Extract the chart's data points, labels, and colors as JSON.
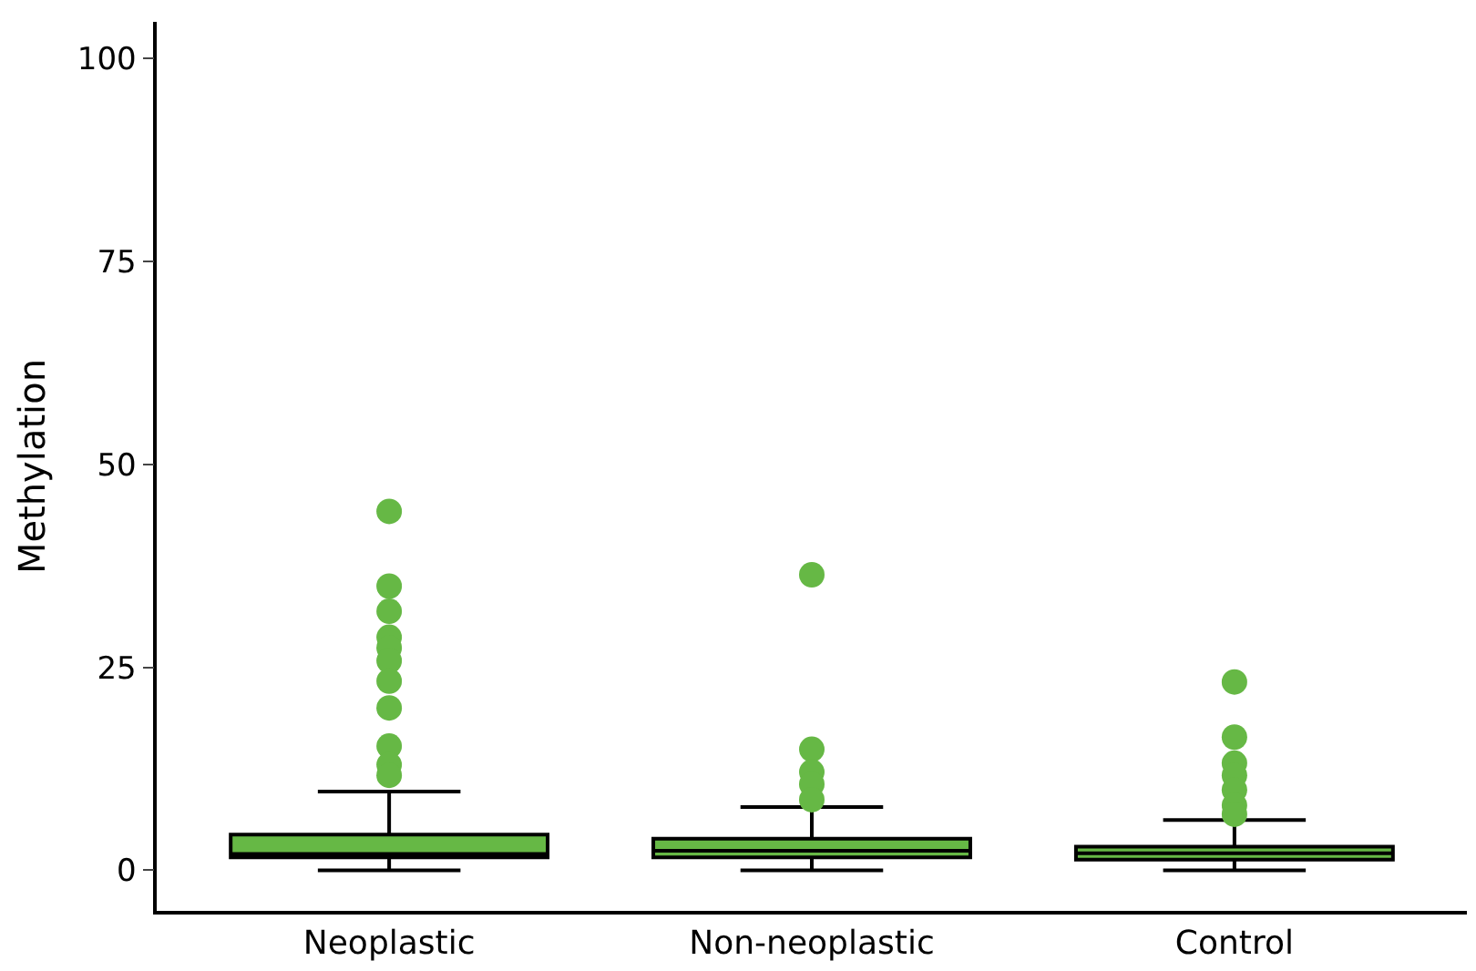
{
  "chart_data": {
    "type": "box",
    "ylabel": "Methylation",
    "categories": [
      "Neoplastic",
      "Non-neoplastic",
      "Control"
    ],
    "ylim": [
      -5,
      104.5
    ],
    "yticks": [
      0,
      25,
      50,
      75,
      100
    ],
    "color": "#66b845",
    "boxes": [
      {
        "low": 0,
        "q1": 1.6,
        "median": 2.0,
        "q3": 4.4,
        "high": 9.7,
        "outliers": [
          44.2,
          35.0,
          31.9,
          28.7,
          27.4,
          25.8,
          23.3,
          20.0,
          15.3,
          13.0,
          11.7
        ]
      },
      {
        "low": 0,
        "q1": 1.6,
        "median": 2.4,
        "q3": 3.9,
        "high": 7.8,
        "outliers": [
          36.4,
          14.9,
          12.1,
          10.6,
          8.7
        ]
      },
      {
        "low": 0,
        "q1": 1.3,
        "median": 2.1,
        "q3": 2.9,
        "high": 6.2,
        "outliers": [
          23.2,
          16.4,
          13.2,
          11.7,
          9.9,
          8.0,
          6.9
        ]
      }
    ]
  }
}
